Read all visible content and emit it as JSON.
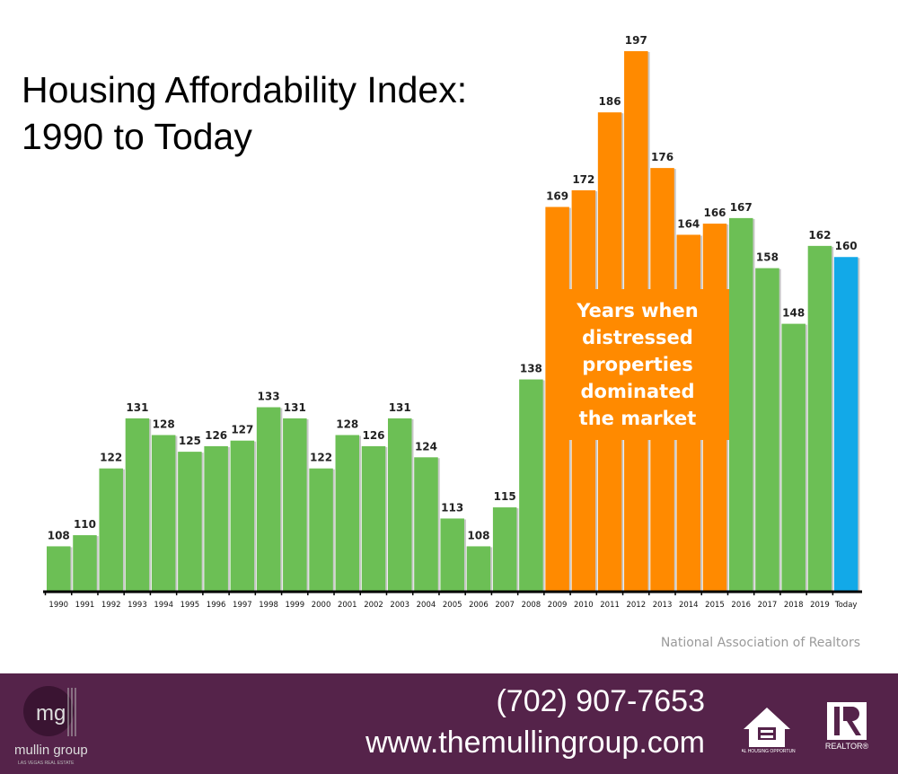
{
  "chart_data": {
    "type": "bar",
    "title": "Housing Affordability Index: 1990 to Today",
    "title_lines": [
      "Housing Affordability Index:",
      "1990 to Today"
    ],
    "categories": [
      "1990",
      "1991",
      "1992",
      "1993",
      "1994",
      "1995",
      "1996",
      "1997",
      "1998",
      "1999",
      "2000",
      "2001",
      "2002",
      "2003",
      "2004",
      "2005",
      "2006",
      "2007",
      "2008",
      "2009",
      "2010",
      "2011",
      "2012",
      "2013",
      "2014",
      "2015",
      "2016",
      "2017",
      "2018",
      "2019",
      "Today"
    ],
    "values": [
      108,
      110,
      122,
      131,
      128,
      125,
      126,
      127,
      133,
      131,
      122,
      128,
      126,
      131,
      124,
      113,
      108,
      115,
      138,
      169,
      172,
      186,
      197,
      176,
      164,
      166,
      167,
      158,
      148,
      162,
      160
    ],
    "ylim": [
      100,
      200
    ],
    "grid": false,
    "data_labels": true,
    "colors": {
      "normal": "#6CBF55",
      "distressed": "#FF8A00",
      "today": "#12A9E8"
    },
    "distressed_range": [
      "2009",
      "2015"
    ],
    "annotation": "Years when distressed properties dominated the market"
  },
  "source": "National Association of Realtors",
  "footer": {
    "phone": "(702) 907-7653",
    "website": "www.themullingroup.com",
    "logo_text": "mullin group",
    "logo_subtext": "LAS VEGAS REAL ESTATE",
    "equal_housing_text": "EQUAL HOUSING OPPORTUNITY",
    "realtor_text": "REALTOR®",
    "background": "#55234A"
  }
}
